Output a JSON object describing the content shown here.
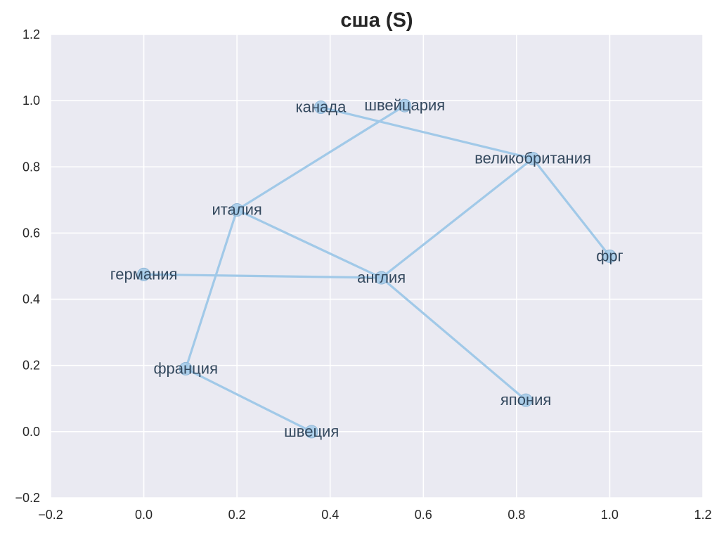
{
  "chart_data": {
    "type": "scatter",
    "title": "сша (S)",
    "xlabel": "",
    "ylabel": "",
    "xlim": [
      -0.2,
      1.2
    ],
    "ylim": [
      -0.2,
      1.2
    ],
    "xticks": [
      "−0.2",
      "0.0",
      "0.2",
      "0.4",
      "0.6",
      "0.8",
      "1.0",
      "1.2"
    ],
    "yticks": [
      "−0.2",
      "0.0",
      "0.2",
      "0.4",
      "0.6",
      "0.8",
      "1.0",
      "1.2"
    ],
    "grid": true,
    "points": [
      {
        "label": "германия",
        "x": 0.0,
        "y": 0.475
      },
      {
        "label": "франция",
        "x": 0.09,
        "y": 0.19
      },
      {
        "label": "италия",
        "x": 0.2,
        "y": 0.67
      },
      {
        "label": "швеция",
        "x": 0.36,
        "y": 0.0
      },
      {
        "label": "канада",
        "x": 0.38,
        "y": 0.98
      },
      {
        "label": "англия",
        "x": 0.51,
        "y": 0.465
      },
      {
        "label": "швейцария",
        "x": 0.56,
        "y": 0.985
      },
      {
        "label": "япония",
        "x": 0.82,
        "y": 0.095
      },
      {
        "label": "великобритания",
        "x": 0.835,
        "y": 0.825
      },
      {
        "label": "фрг",
        "x": 1.0,
        "y": 0.53
      }
    ],
    "edges": [
      [
        "германия",
        "англия"
      ],
      [
        "англия",
        "италия"
      ],
      [
        "англия",
        "япония"
      ],
      [
        "англия",
        "великобритания"
      ],
      [
        "великобритания",
        "канада"
      ],
      [
        "великобритания",
        "фрг"
      ],
      [
        "италия",
        "швейцария"
      ],
      [
        "италия",
        "франция"
      ],
      [
        "франция",
        "швеция"
      ]
    ],
    "colors": {
      "background": "#eaeaf2",
      "grid": "#ffffff",
      "line": "#a1c9e8",
      "marker": "#a1c9e8",
      "label": "#34495e"
    }
  }
}
